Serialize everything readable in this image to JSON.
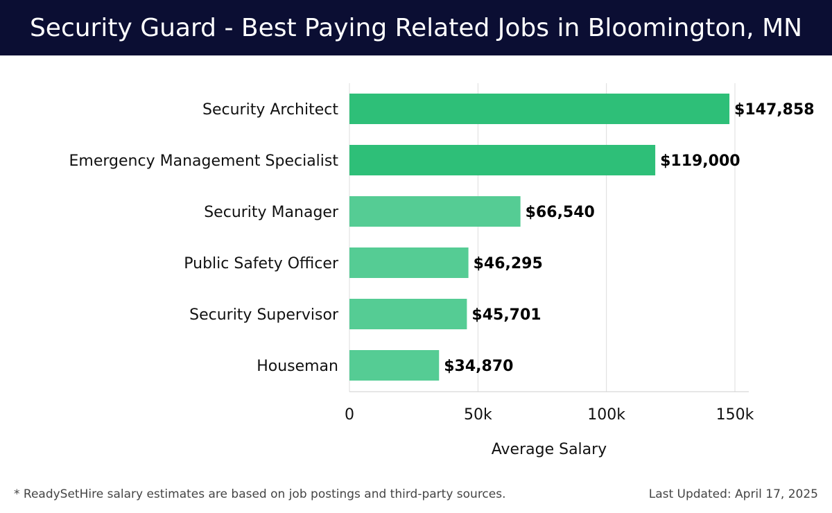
{
  "header": {
    "title": "Security Guard - Best Paying Related Jobs in Bloomington, MN"
  },
  "footer": {
    "note": "* ReadySetHire salary estimates are based on job postings and third-party sources.",
    "updated": "Last Updated: April 17, 2025"
  },
  "colors": {
    "header_bg": "#0b0e33",
    "bar_dark": "#2ebf78",
    "bar_light": "#55cc94",
    "grid": "#dddddd"
  },
  "chart_data": {
    "type": "bar",
    "orientation": "horizontal",
    "title": "Security Guard - Best Paying Related Jobs in Bloomington, MN",
    "xlabel": "Average Salary",
    "ylabel": "",
    "xlim": [
      0,
      150000
    ],
    "x_ticks": [
      0,
      50000,
      100000,
      150000
    ],
    "x_tick_labels": [
      "0",
      "50k",
      "100k",
      "150k"
    ],
    "grid": true,
    "categories": [
      "Security Architect",
      "Emergency Management Specialist",
      "Security Manager",
      "Public Safety Officer",
      "Security Supervisor",
      "Houseman"
    ],
    "values": [
      147858,
      119000,
      66540,
      46295,
      45701,
      34870
    ],
    "value_labels": [
      "$147,858",
      "$119,000",
      "$66,540",
      "$46,295",
      "$45,701",
      "$34,870"
    ]
  }
}
